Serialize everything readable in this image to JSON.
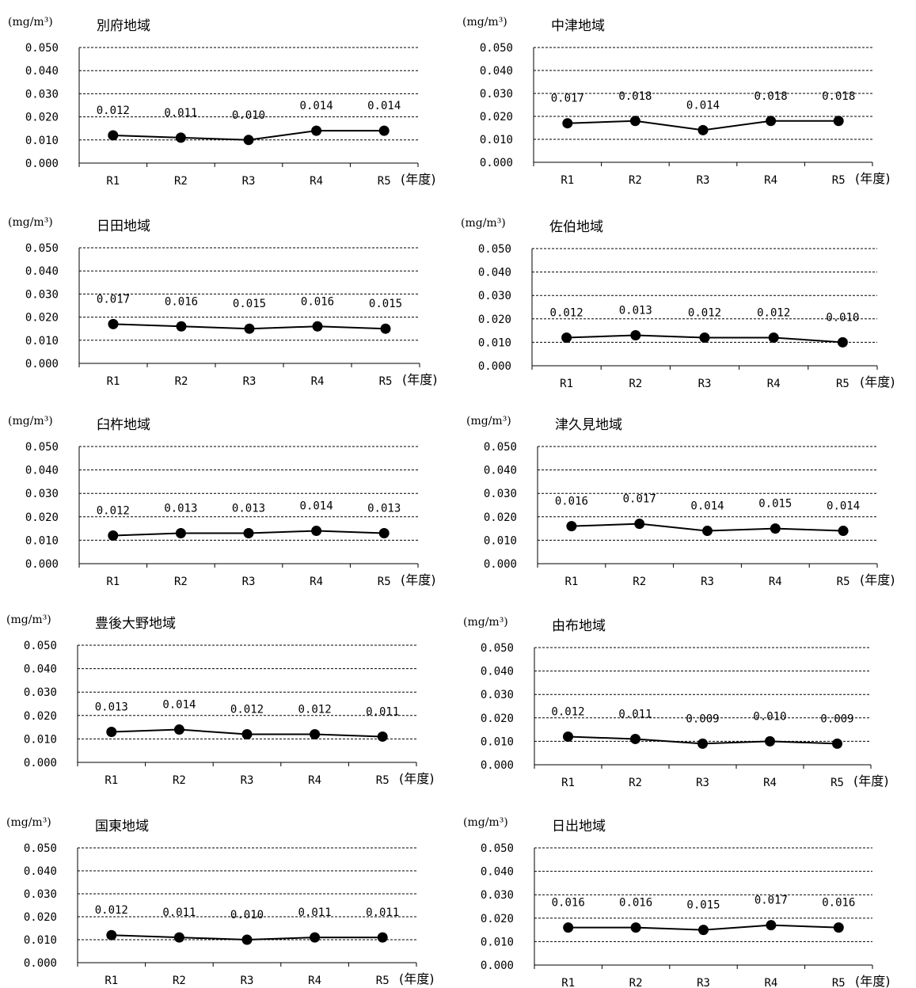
{
  "chart_data": [
    {
      "type": "line",
      "title": "別府地域",
      "ylabel": "(mg/m³)",
      "xlabel": "(年度)",
      "categories": [
        "R1",
        "R2",
        "R3",
        "R4",
        "R5"
      ],
      "values": [
        0.012,
        0.011,
        0.01,
        0.014,
        0.014
      ],
      "value_labels": [
        "0.012",
        "0.011",
        "0.010",
        "0.014",
        "0.014"
      ],
      "y_ticks": [
        "0.000",
        "0.010",
        "0.020",
        "0.030",
        "0.040",
        "0.050"
      ],
      "ylim": [
        0,
        0.05
      ],
      "grid": "dashed horizontal",
      "marker": "filled-circle",
      "color": "#000000"
    },
    {
      "type": "line",
      "title": "中津地域",
      "ylabel": "(mg/m³)",
      "xlabel": "(年度)",
      "categories": [
        "R1",
        "R2",
        "R3",
        "R4",
        "R5"
      ],
      "values": [
        0.017,
        0.018,
        0.014,
        0.018,
        0.018
      ],
      "value_labels": [
        "0.017",
        "0.018",
        "0.014",
        "0.018",
        "0.018"
      ],
      "y_ticks": [
        "0.000",
        "0.010",
        "0.020",
        "0.030",
        "0.040",
        "0.050"
      ],
      "ylim": [
        0,
        0.05
      ],
      "grid": "dashed horizontal",
      "marker": "filled-circle",
      "color": "#000000"
    },
    {
      "type": "line",
      "title": "日田地域",
      "ylabel": "(mg/m³)",
      "xlabel": "(年度)",
      "categories": [
        "R1",
        "R2",
        "R3",
        "R4",
        "R5"
      ],
      "values": [
        0.017,
        0.016,
        0.015,
        0.016,
        0.015
      ],
      "value_labels": [
        "0.017",
        "0.016",
        "0.015",
        "0.016",
        "0.015"
      ],
      "y_ticks": [
        "0.000",
        "0.010",
        "0.020",
        "0.030",
        "0.040",
        "0.050"
      ],
      "ylim": [
        0,
        0.05
      ],
      "grid": "dashed horizontal",
      "marker": "filled-circle",
      "color": "#000000"
    },
    {
      "type": "line",
      "title": "佐伯地域",
      "ylabel": "(mg/m³)",
      "xlabel": "(年度)",
      "categories": [
        "R1",
        "R2",
        "R3",
        "R4",
        "R5"
      ],
      "values": [
        0.012,
        0.013,
        0.012,
        0.012,
        0.01
      ],
      "value_labels": [
        "0.012",
        "0.013",
        "0.012",
        "0.012",
        "0.010"
      ],
      "y_ticks": [
        "0.000",
        "0.010",
        "0.020",
        "0.030",
        "0.040",
        "0.050"
      ],
      "ylim": [
        0,
        0.05
      ],
      "grid": "dashed horizontal",
      "marker": "filled-circle",
      "color": "#000000"
    },
    {
      "type": "line",
      "title": "臼杵地域",
      "ylabel": "(mg/m³)",
      "xlabel": "(年度)",
      "categories": [
        "R1",
        "R2",
        "R3",
        "R4",
        "R5"
      ],
      "values": [
        0.012,
        0.013,
        0.013,
        0.014,
        0.013
      ],
      "value_labels": [
        "0.012",
        "0.013",
        "0.013",
        "0.014",
        "0.013"
      ],
      "y_ticks": [
        "0.000",
        "0.010",
        "0.020",
        "0.030",
        "0.040",
        "0.050"
      ],
      "ylim": [
        0,
        0.05
      ],
      "grid": "dashed horizontal",
      "marker": "filled-circle",
      "color": "#000000"
    },
    {
      "type": "line",
      "title": "津久見地域",
      "ylabel": "(mg/m³)",
      "xlabel": "(年度)",
      "categories": [
        "R1",
        "R2",
        "R3",
        "R4",
        "R5"
      ],
      "values": [
        0.016,
        0.017,
        0.014,
        0.015,
        0.014
      ],
      "value_labels": [
        "0.016",
        "0.017",
        "0.014",
        "0.015",
        "0.014"
      ],
      "y_ticks": [
        "0.000",
        "0.010",
        "0.020",
        "0.030",
        "0.040",
        "0.050"
      ],
      "ylim": [
        0,
        0.05
      ],
      "grid": "dashed horizontal",
      "marker": "filled-circle",
      "color": "#000000"
    },
    {
      "type": "line",
      "title": "豊後大野地域",
      "ylabel": "(mg/m³)",
      "xlabel": "(年度)",
      "categories": [
        "R1",
        "R2",
        "R3",
        "R4",
        "R5"
      ],
      "values": [
        0.013,
        0.014,
        0.012,
        0.012,
        0.011
      ],
      "value_labels": [
        "0.013",
        "0.014",
        "0.012",
        "0.012",
        "0.011"
      ],
      "y_ticks": [
        "0.000",
        "0.010",
        "0.020",
        "0.030",
        "0.040",
        "0.050"
      ],
      "ylim": [
        0,
        0.05
      ],
      "grid": "dashed horizontal",
      "marker": "filled-circle",
      "color": "#000000"
    },
    {
      "type": "line",
      "title": "由布地域",
      "ylabel": "(mg/m³)",
      "xlabel": "(年度)",
      "categories": [
        "R1",
        "R2",
        "R3",
        "R4",
        "R5"
      ],
      "values": [
        0.012,
        0.011,
        0.009,
        0.01,
        0.009
      ],
      "value_labels": [
        "0.012",
        "0.011",
        "0.009",
        "0.010",
        "0.009"
      ],
      "y_ticks": [
        "0.000",
        "0.010",
        "0.020",
        "0.030",
        "0.040",
        "0.050"
      ],
      "ylim": [
        0,
        0.05
      ],
      "grid": "dashed horizontal",
      "marker": "filled-circle",
      "color": "#000000"
    },
    {
      "type": "line",
      "title": "国東地域",
      "ylabel": "(mg/m³)",
      "xlabel": "(年度)",
      "categories": [
        "R1",
        "R2",
        "R3",
        "R4",
        "R5"
      ],
      "values": [
        0.012,
        0.011,
        0.01,
        0.011,
        0.011
      ],
      "value_labels": [
        "0.012",
        "0.011",
        "0.010",
        "0.011",
        "0.011"
      ],
      "y_ticks": [
        "0.000",
        "0.010",
        "0.020",
        "0.030",
        "0.040",
        "0.050"
      ],
      "ylim": [
        0,
        0.05
      ],
      "grid": "dashed horizontal",
      "marker": "filled-circle",
      "color": "#000000"
    },
    {
      "type": "line",
      "title": "日出地域",
      "ylabel": "(mg/m³)",
      "xlabel": "(年度)",
      "categories": [
        "R1",
        "R2",
        "R3",
        "R4",
        "R5"
      ],
      "values": [
        0.016,
        0.016,
        0.015,
        0.017,
        0.016
      ],
      "value_labels": [
        "0.016",
        "0.016",
        "0.015",
        "0.017",
        "0.016"
      ],
      "y_ticks": [
        "0.000",
        "0.010",
        "0.020",
        "0.030",
        "0.040",
        "0.050"
      ],
      "ylim": [
        0,
        0.05
      ],
      "grid": "dashed horizontal",
      "marker": "filled-circle",
      "color": "#000000"
    }
  ]
}
